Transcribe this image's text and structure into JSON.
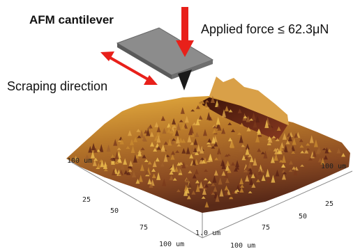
{
  "labels": {
    "cantilever": "AFM cantilever",
    "force": "Applied force ≤ 62.3μN",
    "direction": "Scraping direction"
  },
  "axes": {
    "left": [
      "100 um",
      "25",
      "50",
      "75",
      "100 um"
    ],
    "right": [
      "100 um",
      "25",
      "50",
      "75",
      "100 um"
    ],
    "height": "1.0 um"
  }
}
